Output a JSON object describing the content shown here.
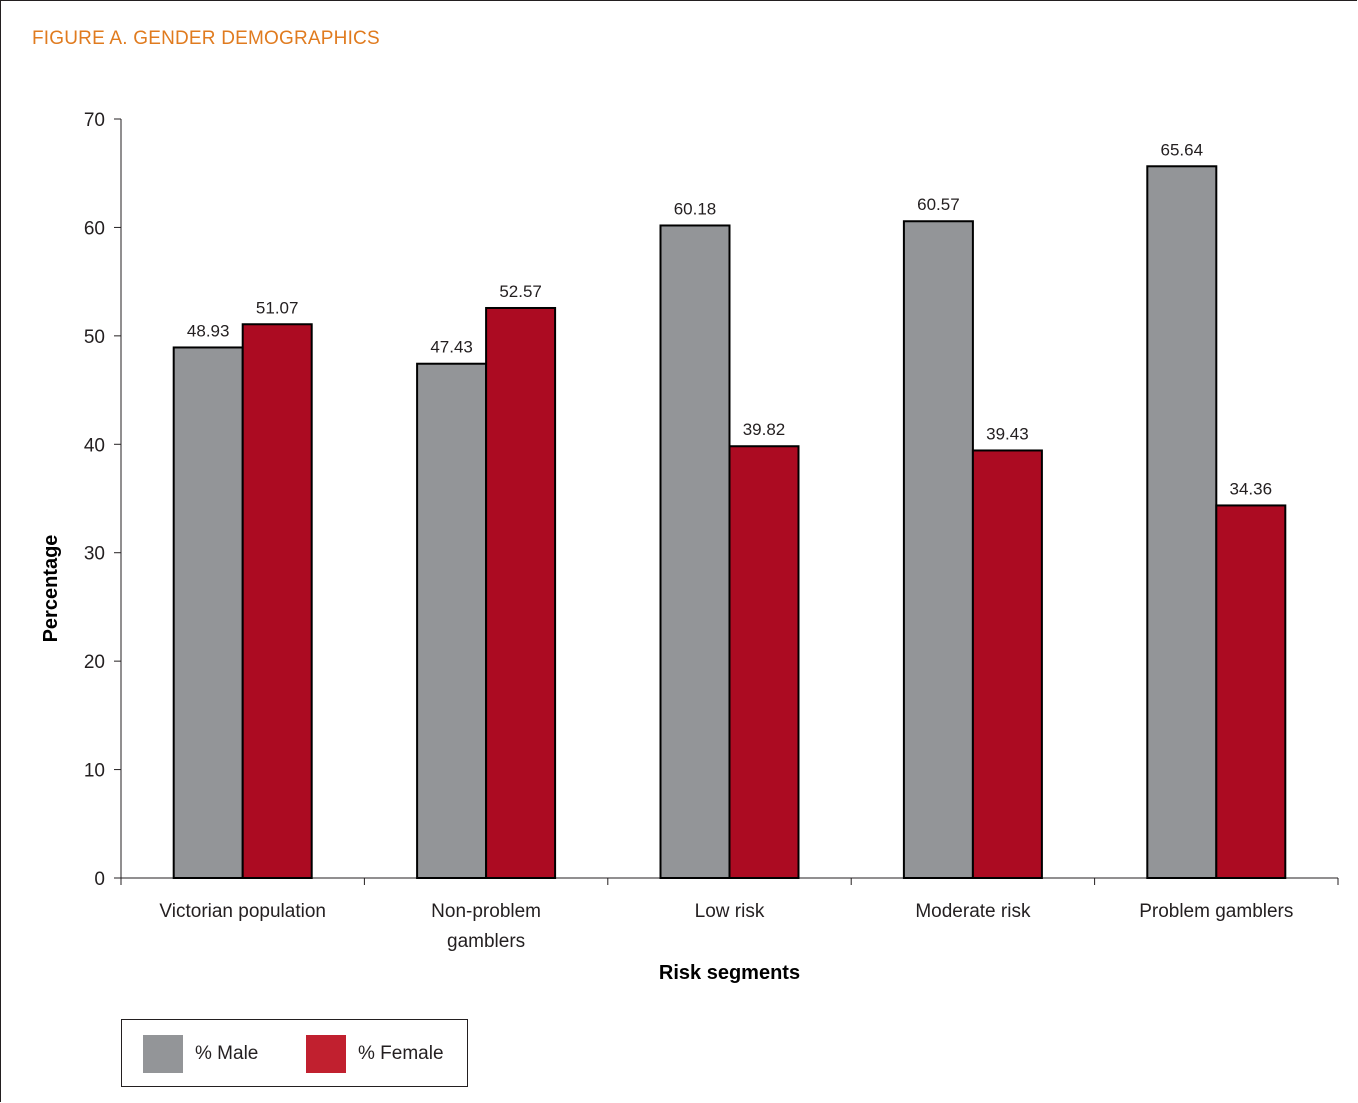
{
  "figure_title": "FIGURE A. GENDER DEMOGRAPHICS",
  "colors": {
    "male": "#939598",
    "female": "#ac0b22",
    "female_legend": "#c1202f",
    "title": "#e07b1f"
  },
  "chart_data": {
    "type": "bar",
    "title": "",
    "xlabel": "Risk segments",
    "ylabel": "Percentage",
    "ylim": [
      0,
      70
    ],
    "yticks": [
      "0",
      "10",
      "20",
      "30",
      "40",
      "50",
      "60",
      "70"
    ],
    "categories": [
      [
        "Victorian population"
      ],
      [
        "Non-problem",
        "gamblers"
      ],
      [
        "Low risk"
      ],
      [
        "Moderate risk"
      ],
      [
        "Problem gamblers"
      ]
    ],
    "series": [
      {
        "name": "% Male",
        "values": [
          48.93,
          47.43,
          60.18,
          60.57,
          65.64
        ],
        "labels": [
          "48.93",
          "47.43",
          "60.18",
          "60.57",
          "65.64"
        ]
      },
      {
        "name": "% Female",
        "values": [
          51.07,
          52.57,
          39.82,
          39.43,
          34.36
        ],
        "labels": [
          "51.07",
          "52.57",
          "39.82",
          "39.43",
          "34.36"
        ]
      }
    ],
    "grid": false,
    "legend_position": "bottom-left"
  }
}
